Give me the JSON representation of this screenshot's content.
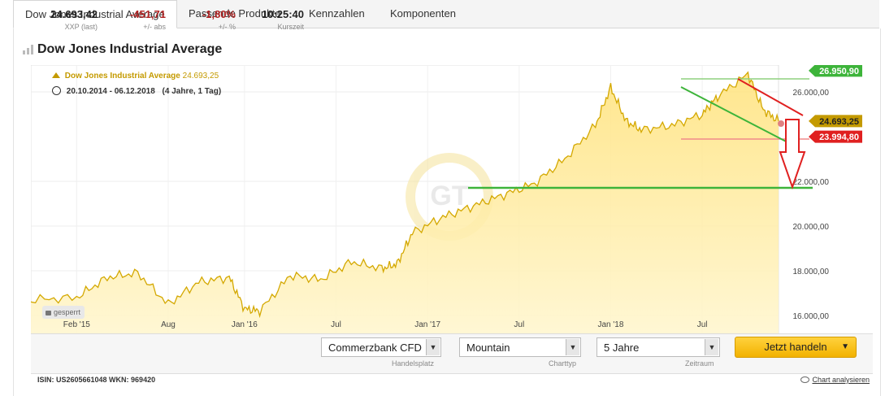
{
  "tabs": [
    {
      "label": "Dow Jones Industrial Average"
    },
    {
      "label": "Passende Produkte"
    },
    {
      "label": "Kennzahlen"
    },
    {
      "label": "Komponenten"
    }
  ],
  "title": "Dow Jones Industrial Average",
  "legend": {
    "name": "Dow Jones Industrial Average",
    "value": "24.693,25",
    "range": "20.10.2014 - 06.12.2018",
    "period": "(4 Jahre, 1 Tag)"
  },
  "locked_label": "gesperrt",
  "watermark": "GT",
  "colors": {
    "accent": "#f2b200",
    "green": "#3db43a",
    "red": "#e02020"
  },
  "chart_data": {
    "type": "area",
    "x_ticks": [
      "Feb '15",
      "Aug",
      "Jan '16",
      "Jul",
      "Jan '17",
      "Jul",
      "Jan '18",
      "Jul"
    ],
    "y_ticks": [
      "16.000,00",
      "18.000,00",
      "20.000,00",
      "22.000,00",
      "26.000,00"
    ],
    "ylim": [
      15200,
      27200
    ],
    "x": [
      "2015-02",
      "2015-04",
      "2015-06",
      "2015-08",
      "2015-10",
      "2015-12",
      "2016-01",
      "2016-02",
      "2016-04",
      "2016-06",
      "2016-08",
      "2016-10",
      "2016-11",
      "2016-12",
      "2017-02",
      "2017-04",
      "2017-06",
      "2017-08",
      "2017-10",
      "2017-12",
      "2018-01",
      "2018-02",
      "2018-03",
      "2018-05",
      "2018-07",
      "2018-08",
      "2018-10",
      "2018-11",
      "2018-12"
    ],
    "values": [
      16800,
      17700,
      17900,
      16500,
      17500,
      17700,
      16300,
      16200,
      17800,
      17600,
      18400,
      18100,
      18300,
      19700,
      20400,
      20900,
      21400,
      21900,
      23000,
      24500,
      26200,
      24700,
      24300,
      24500,
      25000,
      25800,
      26800,
      25200,
      24693
    ],
    "badges": [
      {
        "text": "26.950,90",
        "color": "#3db43a"
      },
      {
        "text": "24.693,25",
        "color": "#c49a00"
      },
      {
        "text": "23.994,80",
        "color": "#e02020"
      }
    ],
    "levels": [
      26950.9,
      24693.25,
      23994.8
    ],
    "support_level": 21500
  },
  "stats": [
    {
      "value": "24.693,42",
      "label": "XXP (last)",
      "color": "#222"
    },
    {
      "value": "-451,71",
      "label": "+/- abs",
      "color": "#b22222"
    },
    {
      "value": "-1,80%",
      "label": "+/- %",
      "color": "#b22222"
    },
    {
      "value": "10:25:40",
      "label": "Kurszeit",
      "color": "#222"
    }
  ],
  "selects": [
    {
      "value": "Commerzbank CFD",
      "label": "Handelsplatz"
    },
    {
      "value": "Mountain",
      "label": "Charttyp"
    },
    {
      "value": "5 Jahre",
      "label": "Zeitraum"
    }
  ],
  "trade_button": "Jetzt handeln",
  "footer": {
    "ids": "ISIN: US2605661048 WKN: 969420",
    "link": "Chart analysieren"
  }
}
